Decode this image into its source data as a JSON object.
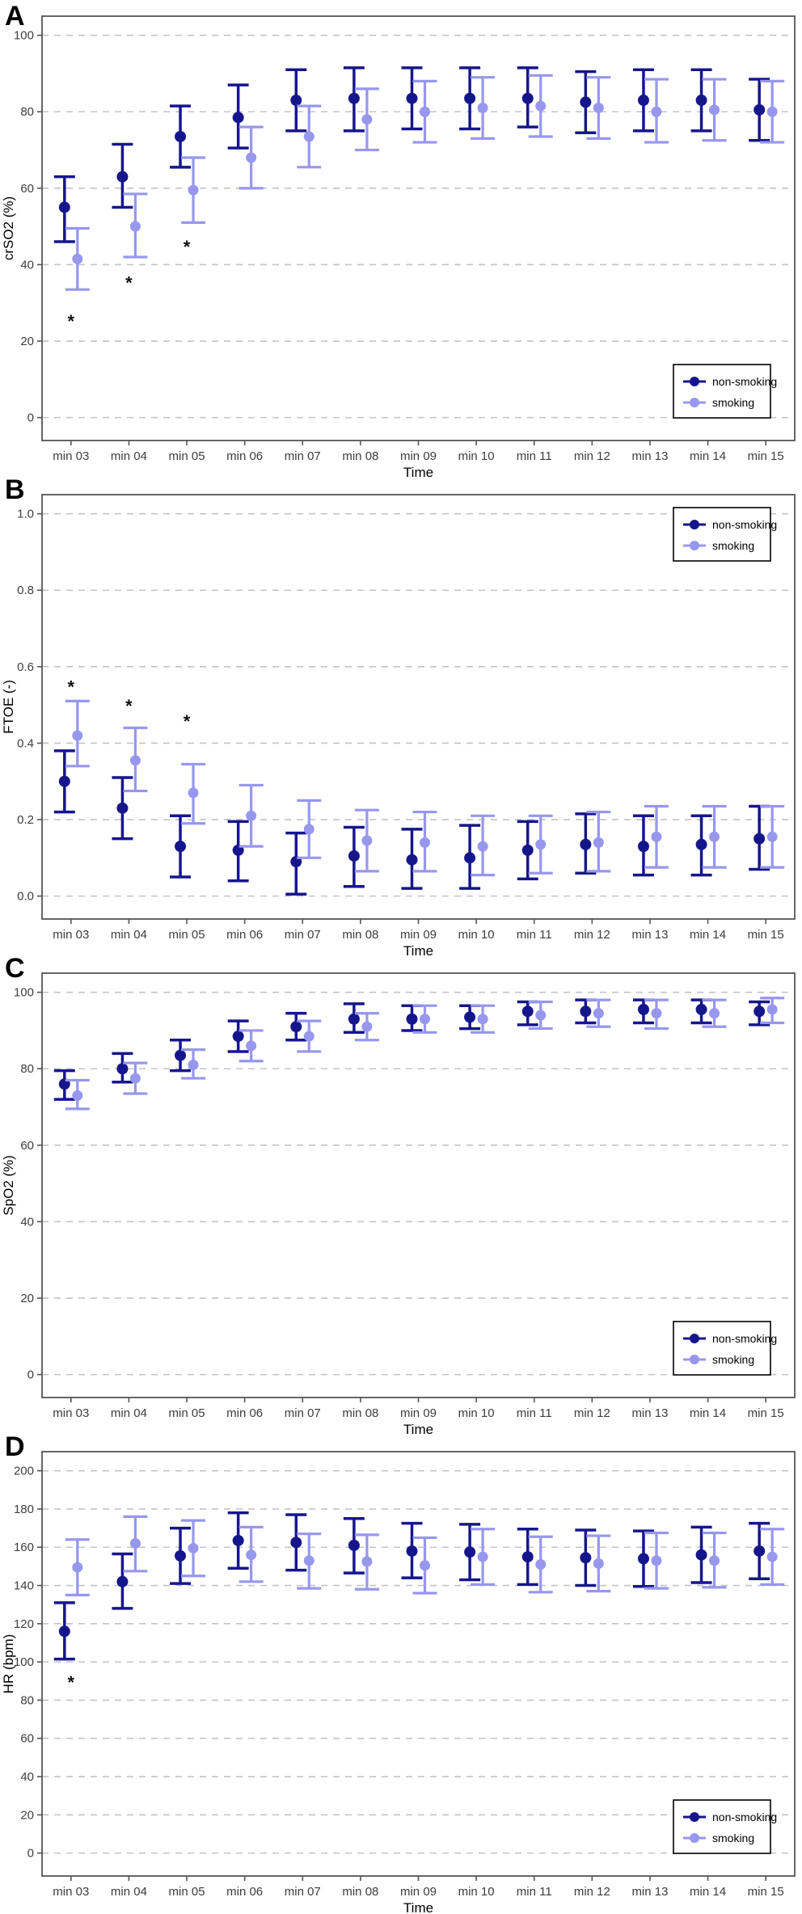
{
  "figure_title": "",
  "colors": {
    "non_smoking": "#16168c",
    "smoking": "#9797ee",
    "grid": "#c4c4c4",
    "axis": "#555555",
    "tick_text": "#3d3d3d",
    "title_text": "#000000",
    "asterisk": "#111111",
    "legend_border": "#000000",
    "legend_bg": "#ffffff"
  },
  "legend": {
    "entries": [
      "non-smoking",
      "smoking"
    ]
  },
  "chart_data": [
    {
      "type": "scatter",
      "panel_label": "A",
      "ylabel": "crSO2 (%)",
      "xlabel": "Time",
      "categories": [
        "min 03",
        "min 04",
        "min 05",
        "min 06",
        "min 07",
        "min 08",
        "min 09",
        "min 10",
        "min 11",
        "min 12",
        "min 13",
        "min 14",
        "min 15"
      ],
      "ylim": [
        -6,
        105
      ],
      "yticks": [
        0,
        20,
        40,
        60,
        80,
        100
      ],
      "ytick_labels": [
        "0",
        "20",
        "40",
        "60",
        "80",
        "100"
      ],
      "grid": true,
      "legend_position": "bottom-right",
      "series": [
        {
          "name": "non-smoking",
          "color_key": "non_smoking",
          "values": [
            55,
            63,
            73.5,
            78.5,
            83,
            83.5,
            83.5,
            83.5,
            83.5,
            82.5,
            83,
            83,
            80.5
          ],
          "ci_low": [
            46,
            55,
            65.5,
            70.5,
            75,
            75,
            75.5,
            75.5,
            76,
            74.5,
            75,
            75,
            72.5
          ],
          "ci_high": [
            63,
            71.5,
            81.5,
            87,
            91,
            91.5,
            91.5,
            91.5,
            91.5,
            90.5,
            91,
            91,
            88.5
          ]
        },
        {
          "name": "smoking",
          "color_key": "smoking",
          "values": [
            41.5,
            50,
            59.5,
            68,
            73.5,
            78,
            80,
            81,
            81.5,
            81,
            80,
            80.5,
            80
          ],
          "ci_low": [
            33.5,
            42,
            51,
            60,
            65.5,
            70,
            72,
            73,
            73.5,
            73,
            72,
            72.5,
            72
          ],
          "ci_high": [
            49.5,
            58.5,
            68,
            76,
            81.5,
            86,
            88,
            89,
            89.5,
            89,
            88.5,
            88.5,
            88
          ]
        }
      ],
      "significance_markers": [
        {
          "category": "min 03",
          "y": 25.5
        },
        {
          "category": "min 04",
          "y": 35.5
        },
        {
          "category": "min 05",
          "y": 45
        }
      ]
    },
    {
      "type": "scatter",
      "panel_label": "B",
      "ylabel": "FTOE (-)",
      "xlabel": "Time",
      "categories": [
        "min 03",
        "min 04",
        "min 05",
        "min 06",
        "min 07",
        "min 08",
        "min 09",
        "min 10",
        "min 11",
        "min 12",
        "min 13",
        "min 14",
        "min 15"
      ],
      "ylim": [
        -0.06,
        1.05
      ],
      "yticks": [
        0.0,
        0.2,
        0.4,
        0.6,
        0.8,
        1.0
      ],
      "ytick_labels": [
        "0.0",
        "0.2",
        "0.4",
        "0.6",
        "0.8",
        "1.0"
      ],
      "grid": true,
      "legend_position": "top-right",
      "series": [
        {
          "name": "non-smoking",
          "color_key": "non_smoking",
          "values": [
            0.3,
            0.23,
            0.13,
            0.12,
            0.09,
            0.105,
            0.095,
            0.1,
            0.12,
            0.135,
            0.13,
            0.135,
            0.15
          ],
          "ci_low": [
            0.22,
            0.15,
            0.05,
            0.04,
            0.005,
            0.025,
            0.02,
            0.02,
            0.045,
            0.06,
            0.055,
            0.055,
            0.07
          ],
          "ci_high": [
            0.38,
            0.31,
            0.21,
            0.195,
            0.165,
            0.18,
            0.175,
            0.185,
            0.195,
            0.215,
            0.21,
            0.21,
            0.235
          ]
        },
        {
          "name": "smoking",
          "color_key": "smoking",
          "values": [
            0.42,
            0.355,
            0.27,
            0.21,
            0.175,
            0.145,
            0.14,
            0.13,
            0.135,
            0.14,
            0.155,
            0.155,
            0.155
          ],
          "ci_low": [
            0.34,
            0.275,
            0.19,
            0.13,
            0.1,
            0.065,
            0.065,
            0.055,
            0.06,
            0.065,
            0.075,
            0.075,
            0.075
          ],
          "ci_high": [
            0.51,
            0.44,
            0.345,
            0.29,
            0.25,
            0.225,
            0.22,
            0.21,
            0.21,
            0.22,
            0.235,
            0.235,
            0.235
          ]
        }
      ],
      "significance_markers": [
        {
          "category": "min 03",
          "y": 0.55
        },
        {
          "category": "min 04",
          "y": 0.5
        },
        {
          "category": "min 05",
          "y": 0.46
        }
      ]
    },
    {
      "type": "scatter",
      "panel_label": "C",
      "ylabel": "SpO2 (%)",
      "xlabel": "Time",
      "categories": [
        "min 03",
        "min 04",
        "min 05",
        "min 06",
        "min 07",
        "min 08",
        "min 09",
        "min 10",
        "min 11",
        "min 12",
        "min 13",
        "min 14",
        "min 15"
      ],
      "ylim": [
        -6,
        105
      ],
      "yticks": [
        0,
        20,
        40,
        60,
        80,
        100
      ],
      "ytick_labels": [
        "0",
        "20",
        "40",
        "60",
        "80",
        "100"
      ],
      "grid": true,
      "legend_position": "bottom-right",
      "series": [
        {
          "name": "non-smoking",
          "color_key": "non_smoking",
          "values": [
            76,
            80,
            83.5,
            88.5,
            91,
            93,
            93,
            93.5,
            95,
            95,
            95.5,
            95.5,
            95
          ],
          "ci_low": [
            72,
            76.5,
            79.5,
            84.5,
            87.5,
            89.5,
            90,
            90.5,
            91.5,
            92,
            92,
            92,
            91.5
          ],
          "ci_high": [
            79.5,
            84,
            87.5,
            92.5,
            94.5,
            97,
            96.5,
            96.5,
            97.5,
            98,
            98,
            98,
            97.5
          ]
        },
        {
          "name": "smoking",
          "color_key": "smoking",
          "values": [
            73,
            77.5,
            81,
            86,
            88.5,
            91,
            93,
            93,
            94,
            94.5,
            94.5,
            94.5,
            95.5
          ],
          "ci_low": [
            69.5,
            73.5,
            77.5,
            82,
            84.5,
            87.5,
            89.5,
            89.5,
            90.5,
            91,
            90.5,
            91,
            92
          ],
          "ci_high": [
            77,
            81.5,
            85,
            90,
            92.5,
            94.5,
            96.5,
            96.5,
            97.5,
            98,
            98,
            98,
            98.5
          ]
        }
      ],
      "significance_markers": []
    },
    {
      "type": "scatter",
      "panel_label": "D",
      "ylabel": "HR (bpm)",
      "xlabel": "Time",
      "categories": [
        "min 03",
        "min 04",
        "min 05",
        "min 06",
        "min 07",
        "min 08",
        "min 09",
        "min 10",
        "min 11",
        "min 12",
        "min 13",
        "min 14",
        "min 15"
      ],
      "ylim": [
        -12,
        210
      ],
      "yticks": [
        0,
        20,
        40,
        60,
        80,
        100,
        120,
        140,
        160,
        180,
        200
      ],
      "ytick_labels": [
        "0",
        "20",
        "40",
        "60",
        "80",
        "100",
        "120",
        "140",
        "160",
        "180",
        "200"
      ],
      "grid": true,
      "legend_position": "bottom-right",
      "series": [
        {
          "name": "non-smoking",
          "color_key": "non_smoking",
          "values": [
            116,
            142,
            155.5,
            163.5,
            162.5,
            161,
            158,
            157.5,
            155,
            154.5,
            154,
            156,
            158
          ],
          "ci_low": [
            101.5,
            128,
            141,
            149,
            148,
            146.5,
            144,
            143,
            140.5,
            140,
            139.5,
            141.5,
            143.5
          ],
          "ci_high": [
            131,
            156.5,
            170,
            178,
            177,
            175,
            172.5,
            172,
            169.5,
            169,
            168.5,
            170.5,
            172.5
          ]
        },
        {
          "name": "smoking",
          "color_key": "smoking",
          "values": [
            149.5,
            162,
            159.5,
            156,
            153,
            152.5,
            150.5,
            155,
            151,
            151.5,
            153,
            153,
            155
          ],
          "ci_low": [
            135,
            147.5,
            145,
            142,
            138.5,
            138,
            136,
            140.5,
            136.5,
            137,
            138.5,
            139,
            140.5
          ],
          "ci_high": [
            164,
            176,
            174,
            170.5,
            167,
            166.5,
            165,
            169.5,
            165.5,
            166,
            167.5,
            167.5,
            169.5
          ]
        }
      ],
      "significance_markers": [
        {
          "category": "min 03",
          "y": 90
        }
      ]
    }
  ]
}
